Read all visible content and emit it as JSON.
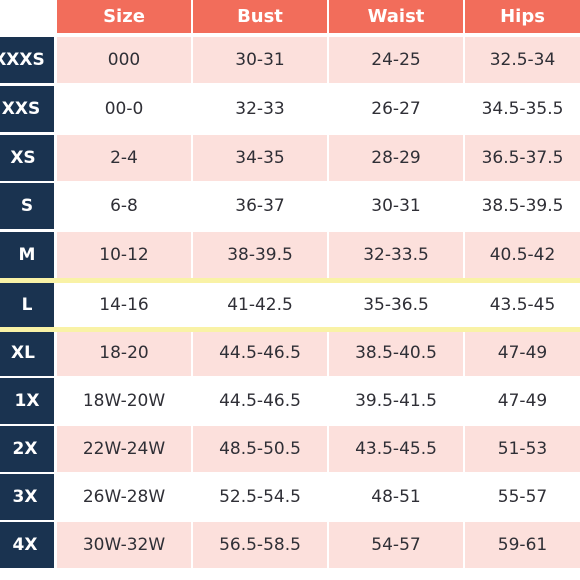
{
  "headers": [
    "Size",
    "Bust",
    "Waist",
    "Hips"
  ],
  "rows": [
    {
      "label": "XXXS",
      "values": [
        "000",
        "30-31",
        "24-25",
        "32.5-34"
      ]
    },
    {
      "label": "XXS",
      "values": [
        "00-0",
        "32-33",
        "26-27",
        "34.5-35.5"
      ]
    },
    {
      "label": "XS",
      "values": [
        "2-4",
        "34-35",
        "28-29",
        "36.5-37.5"
      ]
    },
    {
      "label": "S",
      "values": [
        "6-8",
        "36-37",
        "30-31",
        "38.5-39.5"
      ]
    },
    {
      "label": "M",
      "values": [
        "10-12",
        "38-39.5",
        "32-33.5",
        "40.5-42"
      ]
    },
    {
      "label": "L",
      "values": [
        "14-16",
        "41-42.5",
        "35-36.5",
        "43.5-45"
      ]
    },
    {
      "label": "XL",
      "values": [
        "18-20",
        "44.5-46.5",
        "38.5-40.5",
        "47-49"
      ]
    },
    {
      "label": "1X",
      "values": [
        "18W-20W",
        "44.5-46.5",
        "39.5-41.5",
        "47-49"
      ]
    },
    {
      "label": "2X",
      "values": [
        "22W-24W",
        "48.5-50.5",
        "43.5-45.5",
        "51-53"
      ]
    },
    {
      "label": "3X",
      "values": [
        "26W-28W",
        "52.5-54.5",
        "48-51",
        "55-57"
      ]
    },
    {
      "label": "4X",
      "values": [
        "30W-32W",
        "56.5-58.5",
        "54-57",
        "59-61"
      ]
    }
  ],
  "highlighted_row": "L",
  "colors": {
    "header_bg": "#f26d5b",
    "label_bg": "#1a3350",
    "row_alt_bg": "#fce0dc",
    "highlight": "#f9f2a6",
    "text": "#2f2f36"
  }
}
